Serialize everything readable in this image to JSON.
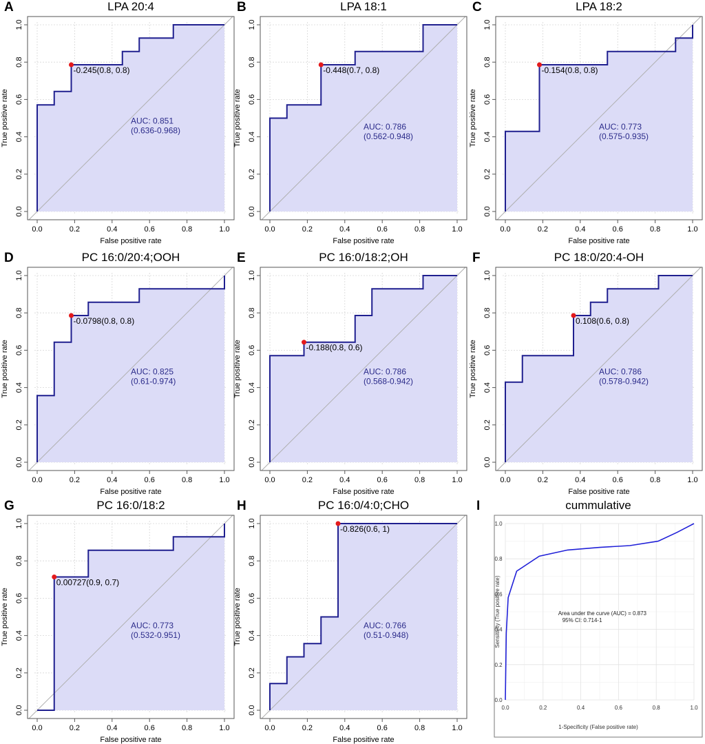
{
  "panels": [
    {
      "label": "A",
      "title": "LPA 20:4",
      "chart_data": {
        "type": "roc",
        "xlabel": "False positive rate",
        "ylabel": "True positive rate",
        "xlim": [
          0,
          1
        ],
        "ylim": [
          0,
          1
        ],
        "ticks": [
          "0.0",
          "0.2",
          "0.4",
          "0.6",
          "0.8",
          "1.0"
        ],
        "grid": true,
        "curve": [
          [
            0,
            0
          ],
          [
            0,
            0.571
          ],
          [
            0.091,
            0.571
          ],
          [
            0.091,
            0.643
          ],
          [
            0.182,
            0.643
          ],
          [
            0.182,
            0.786
          ],
          [
            0.455,
            0.786
          ],
          [
            0.455,
            0.857
          ],
          [
            0.545,
            0.857
          ],
          [
            0.545,
            0.929
          ],
          [
            0.727,
            0.929
          ],
          [
            0.727,
            1
          ],
          [
            1,
            1
          ]
        ],
        "optimal_point": [
          0.182,
          0.786
        ],
        "optimal_label": "-0.245(0.8, 0.8)",
        "auc_label": "AUC: 0.851",
        "ci_label": "(0.636-0.968)",
        "auc_text_at": [
          0.5,
          0.47
        ]
      }
    },
    {
      "label": "B",
      "title": "LPA 18:1",
      "chart_data": {
        "type": "roc",
        "xlabel": "False positive rate",
        "ylabel": "True positive rate",
        "xlim": [
          0,
          1
        ],
        "ylim": [
          0,
          1
        ],
        "ticks": [
          "0.0",
          "0.2",
          "0.4",
          "0.6",
          "0.8",
          "1.0"
        ],
        "grid": true,
        "curve": [
          [
            0,
            0
          ],
          [
            0,
            0.5
          ],
          [
            0.091,
            0.5
          ],
          [
            0.091,
            0.571
          ],
          [
            0.273,
            0.571
          ],
          [
            0.273,
            0.786
          ],
          [
            0.455,
            0.786
          ],
          [
            0.455,
            0.857
          ],
          [
            0.818,
            0.857
          ],
          [
            0.818,
            1
          ],
          [
            1,
            1
          ]
        ],
        "optimal_point": [
          0.273,
          0.786
        ],
        "optimal_label": "-0.448(0.7, 0.8)",
        "auc_label": "AUC: 0.786",
        "ci_label": "(0.562-0.948)",
        "auc_text_at": [
          0.5,
          0.44
        ]
      }
    },
    {
      "label": "C",
      "title": "LPA 18:2",
      "chart_data": {
        "type": "roc",
        "xlabel": "False positive rate",
        "ylabel": "True positive rate",
        "xlim": [
          0,
          1
        ],
        "ylim": [
          0,
          1
        ],
        "ticks": [
          "0.0",
          "0.2",
          "0.4",
          "0.6",
          "0.8",
          "1.0"
        ],
        "grid": true,
        "curve": [
          [
            0,
            0
          ],
          [
            0,
            0.429
          ],
          [
            0.182,
            0.429
          ],
          [
            0.182,
            0.786
          ],
          [
            0.545,
            0.786
          ],
          [
            0.545,
            0.857
          ],
          [
            0.909,
            0.857
          ],
          [
            0.909,
            0.929
          ],
          [
            1,
            0.929
          ],
          [
            1,
            1
          ]
        ],
        "optimal_point": [
          0.182,
          0.786
        ],
        "optimal_label": "-0.154(0.8, 0.8)",
        "auc_label": "AUC: 0.773",
        "ci_label": "(0.575-0.935)",
        "auc_text_at": [
          0.5,
          0.44
        ]
      }
    },
    {
      "label": "D",
      "title": "PC 16:0/20:4;OOH",
      "chart_data": {
        "type": "roc",
        "xlabel": "False positive rate",
        "ylabel": "True positive rate",
        "xlim": [
          0,
          1
        ],
        "ylim": [
          0,
          1
        ],
        "ticks": [
          "0.0",
          "0.2",
          "0.4",
          "0.6",
          "0.8",
          "1.0"
        ],
        "grid": true,
        "curve": [
          [
            0,
            0
          ],
          [
            0,
            0.357
          ],
          [
            0.091,
            0.357
          ],
          [
            0.091,
            0.643
          ],
          [
            0.182,
            0.643
          ],
          [
            0.182,
            0.786
          ],
          [
            0.273,
            0.786
          ],
          [
            0.273,
            0.857
          ],
          [
            0.545,
            0.857
          ],
          [
            0.545,
            0.929
          ],
          [
            1,
            0.929
          ],
          [
            1,
            1
          ]
        ],
        "optimal_point": [
          0.182,
          0.786
        ],
        "optimal_label": "-0.0798(0.8, 0.8)",
        "auc_label": "AUC: 0.825",
        "ci_label": "(0.61-0.974)",
        "auc_text_at": [
          0.5,
          0.47
        ]
      }
    },
    {
      "label": "E",
      "title": "PC 16:0/18:2;OH",
      "chart_data": {
        "type": "roc",
        "xlabel": "False positive rate",
        "ylabel": "True positive rate",
        "xlim": [
          0,
          1
        ],
        "ylim": [
          0,
          1
        ],
        "ticks": [
          "0.0",
          "0.2",
          "0.4",
          "0.6",
          "0.8",
          "1.0"
        ],
        "grid": true,
        "curve": [
          [
            0,
            0
          ],
          [
            0,
            0.571
          ],
          [
            0.182,
            0.571
          ],
          [
            0.182,
            0.643
          ],
          [
            0.455,
            0.643
          ],
          [
            0.455,
            0.786
          ],
          [
            0.545,
            0.786
          ],
          [
            0.545,
            0.929
          ],
          [
            0.818,
            0.929
          ],
          [
            0.818,
            1
          ],
          [
            1,
            1
          ]
        ],
        "optimal_point": [
          0.182,
          0.643
        ],
        "optimal_label": "-0.188(0.8, 0.6)",
        "auc_label": "AUC: 0.786",
        "ci_label": "(0.568-0.942)",
        "auc_text_at": [
          0.5,
          0.47
        ]
      }
    },
    {
      "label": "F",
      "title": "PC 18:0/20:4-OH",
      "chart_data": {
        "type": "roc",
        "xlabel": "False positive rate",
        "ylabel": "True positive rate",
        "xlim": [
          0,
          1
        ],
        "ylim": [
          0,
          1
        ],
        "ticks": [
          "0.0",
          "0.2",
          "0.4",
          "0.6",
          "0.8",
          "1.0"
        ],
        "grid": true,
        "curve": [
          [
            0,
            0
          ],
          [
            0,
            0.429
          ],
          [
            0.091,
            0.429
          ],
          [
            0.091,
            0.571
          ],
          [
            0.364,
            0.571
          ],
          [
            0.364,
            0.786
          ],
          [
            0.455,
            0.786
          ],
          [
            0.455,
            0.857
          ],
          [
            0.545,
            0.857
          ],
          [
            0.545,
            0.929
          ],
          [
            0.818,
            0.929
          ],
          [
            0.818,
            1
          ],
          [
            1,
            1
          ]
        ],
        "optimal_point": [
          0.364,
          0.786
        ],
        "optimal_label": "0.108(0.6, 0.8)",
        "auc_label": "AUC: 0.786",
        "ci_label": "(0.578-0.942)",
        "auc_text_at": [
          0.5,
          0.47
        ]
      }
    },
    {
      "label": "G",
      "title": "PC 16:0/18:2",
      "chart_data": {
        "type": "roc",
        "xlabel": "False positive rate",
        "ylabel": "True positive rate",
        "xlim": [
          0,
          1
        ],
        "ylim": [
          0,
          1
        ],
        "ticks": [
          "0.0",
          "0.2",
          "0.4",
          "0.6",
          "0.8",
          "1.0"
        ],
        "grid": true,
        "curve": [
          [
            0,
            0
          ],
          [
            0.091,
            0
          ],
          [
            0.091,
            0.714
          ],
          [
            0.273,
            0.714
          ],
          [
            0.273,
            0.857
          ],
          [
            0.727,
            0.857
          ],
          [
            0.727,
            0.929
          ],
          [
            1,
            0.929
          ],
          [
            1,
            1
          ]
        ],
        "optimal_point": [
          0.091,
          0.714
        ],
        "optimal_label": "0.00727(0.9, 0.7)",
        "auc_label": "AUC: 0.773",
        "ci_label": "(0.532-0.951)",
        "auc_text_at": [
          0.5,
          0.44
        ]
      }
    },
    {
      "label": "H",
      "title": "PC 16:0/4:0;CHO",
      "chart_data": {
        "type": "roc",
        "xlabel": "False positive rate",
        "ylabel": "True positive rate",
        "xlim": [
          0,
          1
        ],
        "ylim": [
          0,
          1
        ],
        "ticks": [
          "0.0",
          "0.2",
          "0.4",
          "0.6",
          "0.8",
          "1.0"
        ],
        "grid": true,
        "curve": [
          [
            0,
            0
          ],
          [
            0,
            0.143
          ],
          [
            0.091,
            0.143
          ],
          [
            0.091,
            0.286
          ],
          [
            0.182,
            0.286
          ],
          [
            0.182,
            0.357
          ],
          [
            0.273,
            0.357
          ],
          [
            0.273,
            0.5
          ],
          [
            0.364,
            0.5
          ],
          [
            0.364,
            1
          ],
          [
            1,
            1
          ]
        ],
        "optimal_point": [
          0.364,
          1
        ],
        "optimal_label": "-0.826(0.6, 1)",
        "auc_label": "AUC: 0.766",
        "ci_label": "(0.51-0.948)",
        "auc_text_at": [
          0.5,
          0.44
        ]
      }
    }
  ],
  "cumulative": {
    "label": "I",
    "title": "cummulative",
    "chart_data": {
      "type": "line",
      "xlabel": "1-Specificity (False positive rate)",
      "ylabel": "Sensitivity (True positive rate)",
      "xlim": [
        0,
        1
      ],
      "ylim": [
        0,
        1
      ],
      "ticks": [
        "0.0",
        "0.2",
        "0.4",
        "0.6",
        "0.8",
        "1.0"
      ],
      "grid": true,
      "curve": [
        [
          0,
          0
        ],
        [
          0.005,
          0.38
        ],
        [
          0.015,
          0.58
        ],
        [
          0.06,
          0.73
        ],
        [
          0.18,
          0.815
        ],
        [
          0.33,
          0.85
        ],
        [
          0.5,
          0.865
        ],
        [
          0.66,
          0.875
        ],
        [
          0.81,
          0.9
        ],
        [
          0.91,
          0.95
        ],
        [
          1,
          1
        ]
      ],
      "auc_text": "Area under the curve (AUC) = 0.873",
      "ci_text": "95% CI: 0.714-1",
      "auc_text_at": [
        0.28,
        0.48
      ]
    }
  },
  "colors": {
    "curve": "#1f1f8f",
    "fill": "#dcdcf7",
    "diagonal": "#b0b0b0",
    "grid": "#d6d6d6",
    "point": "#e41a1c",
    "annotation": "#2b2b8a",
    "cumulative_line": "#2020d8"
  }
}
